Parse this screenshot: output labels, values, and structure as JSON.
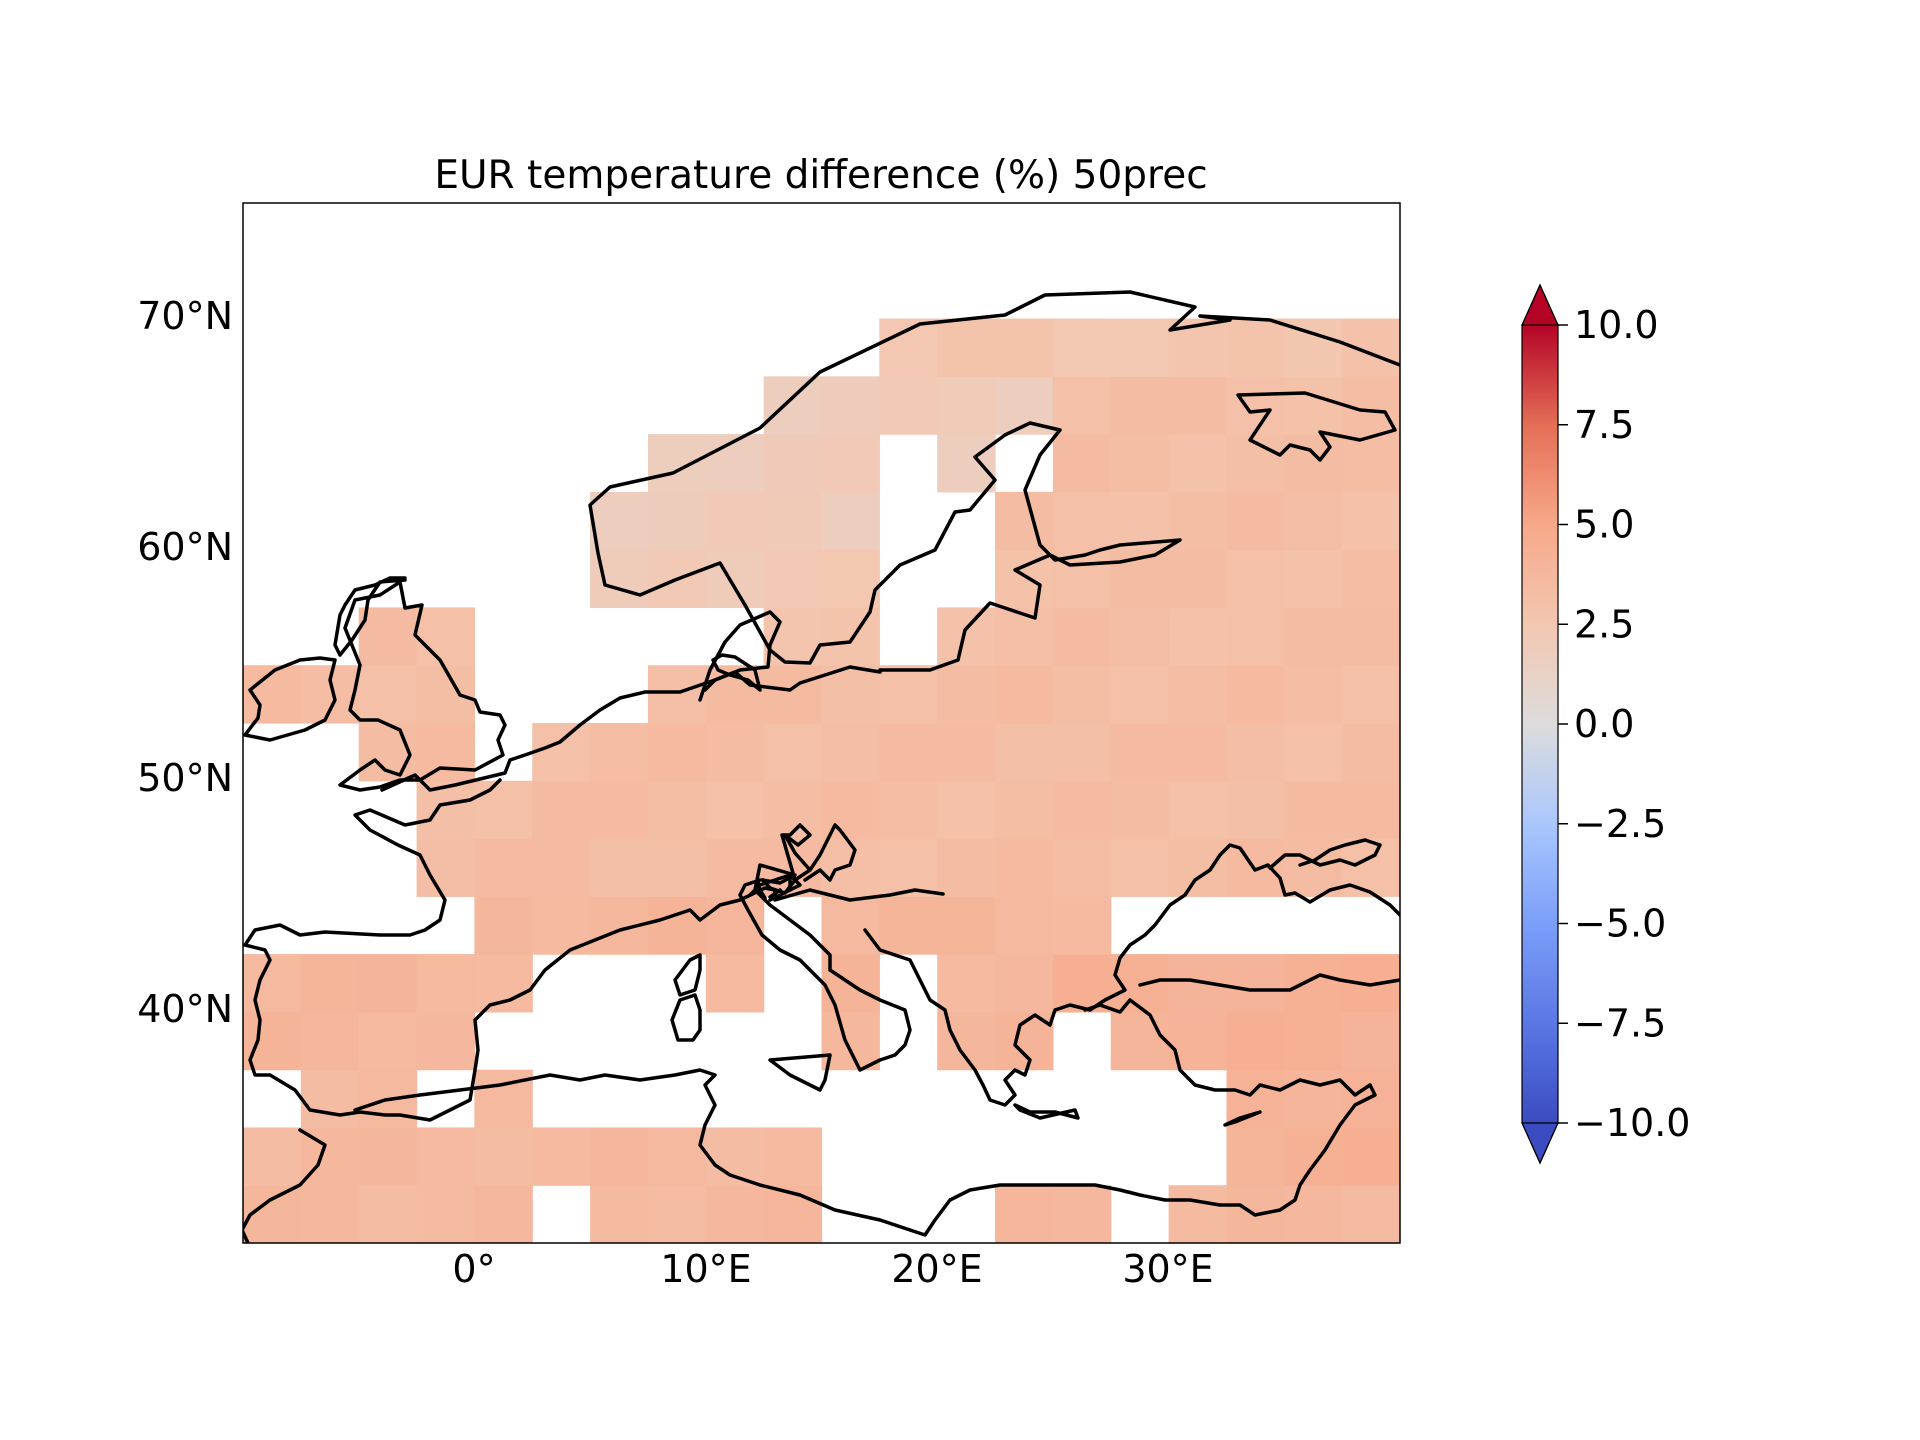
{
  "title": "EUR temperature difference (%) 50prec",
  "axes": {
    "x_ticks": [
      {
        "label": "0°",
        "lon": 0
      },
      {
        "label": "10°E",
        "lon": 10
      },
      {
        "label": "20°E",
        "lon": 20
      },
      {
        "label": "30°E",
        "lon": 30
      }
    ],
    "y_ticks": [
      {
        "label": "70°N",
        "lat": 70
      },
      {
        "label": "60°N",
        "lat": 60
      },
      {
        "label": "50°N",
        "lat": 50
      },
      {
        "label": "40°N",
        "lat": 40
      }
    ],
    "xlim": [
      -10,
      40
    ],
    "ylim": [
      30,
      75
    ]
  },
  "colorbar": {
    "ticks": [
      "10.0",
      "7.5",
      "5.0",
      "2.5",
      "0.0",
      "−2.5",
      "−5.0",
      "−7.5",
      "−10.0"
    ],
    "vmin": -10,
    "vmax": 10,
    "extend": "both",
    "colormap": "coolwarm",
    "colors": [
      "#3b4cc0",
      "#6788ee",
      "#9abbff",
      "#c9d7f0",
      "#dddddd",
      "#f2cbb7",
      "#f7a889",
      "#e26952",
      "#b40426"
    ]
  },
  "chart_data": {
    "type": "heatmap",
    "title": "EUR temperature difference (%) 50prec",
    "xlabel": "",
    "ylabel": "",
    "lon_range": [
      -10,
      40
    ],
    "lat_range": [
      30,
      75
    ],
    "cell_size_deg": 2.5,
    "typical_values": {
      "scandinavia_west": 2.0,
      "scandinavia_east": 2.6,
      "central_europe": 3.3,
      "southern_europe": 3.8,
      "north_africa": 3.6,
      "turkey": 4.2,
      "russia": 3.2
    },
    "grid": false
  }
}
